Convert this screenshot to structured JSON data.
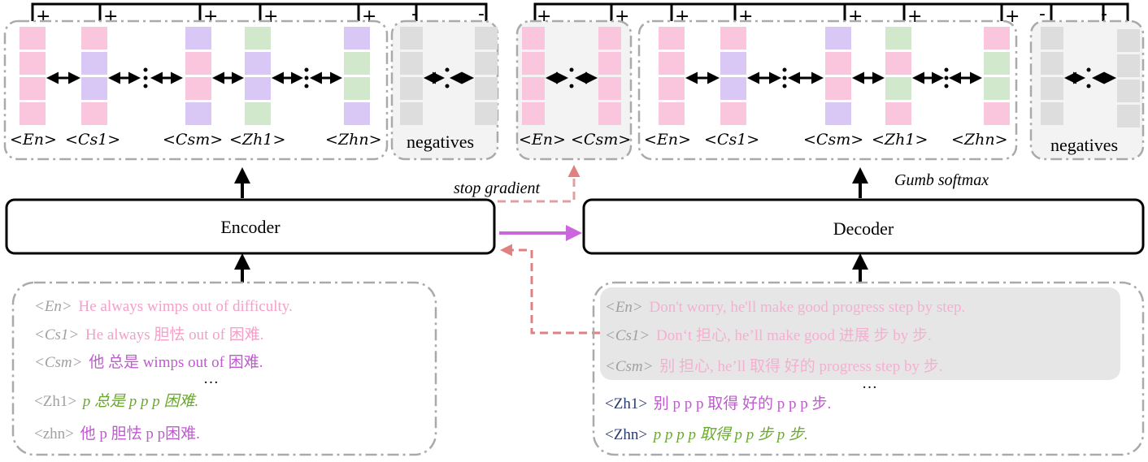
{
  "colors": {
    "pink": "#f9c6de",
    "purple": "#d9c8f5",
    "green": "#d2e8cc",
    "gray": "#dddddd",
    "magenta": "#cc66dd",
    "text_pink": "#f4a0c8",
    "text_purple": "#c05ad0",
    "text_green": "#6aa82e",
    "text_gray": "#a0a0a0",
    "text_navy": "#2a3c6e",
    "arrow_pink": "#e08080",
    "dash_box": "#aaaaaa"
  },
  "encoder": {
    "label": "Encoder",
    "signs": [
      "+",
      "+",
      "+",
      "+",
      "+",
      "-",
      "-"
    ],
    "token_labels": [
      "<En>",
      "<Cs1>",
      "<Csm>",
      "<Zh1>",
      "<Zhn>"
    ],
    "negatives_label": "negatives"
  },
  "decoder": {
    "label": "Decoder",
    "signs": [
      "+",
      "+",
      "+",
      "+",
      "+",
      "+",
      "+",
      "-",
      "-"
    ],
    "token_labels": [
      "<En>",
      "<Cs1>",
      "<Csm>",
      "<Zh1>",
      "<Zhn>"
    ],
    "negatives_label": "negatives",
    "gumbel_label": "Gumb softmax"
  },
  "middle": {
    "token_labels": [
      "<En>",
      "<Csm>"
    ],
    "stop_gradient_label": "stop gradient"
  },
  "encoder_input": {
    "lines": [
      {
        "tag": "<En>",
        "text": "He always wimps out of difficulty."
      },
      {
        "tag": "<Cs1>",
        "text": "He always 胆怯 out of 困难."
      },
      {
        "tag": "<Csm>",
        "text": "他 总是 wimps out of 困难."
      },
      {
        "tag": "",
        "text": "…"
      },
      {
        "tag": "<Zh1>",
        "text": "p 总是 p p p 困难."
      },
      {
        "tag": "<zhn>",
        "text": "他 p 胆怯 p p困难."
      }
    ]
  },
  "decoder_input": {
    "lines": [
      {
        "tag": "<En>",
        "text": "Don't worry, he'll make good progress step by step."
      },
      {
        "tag": "<Cs1>",
        "text": "Don‘t 担心, he’ll make good 进展 步 by 步."
      },
      {
        "tag": "<Csm>",
        "text": "别 担心, he’ll 取得 好的 progress step by 步."
      },
      {
        "tag": "",
        "text": "…"
      },
      {
        "tag": "<Zh1>",
        "text": "别 p p p 取得 好的 p p p 步."
      },
      {
        "tag": "<Zhn>",
        "text": "p p p p 取得 p p 步 p 步."
      }
    ]
  }
}
